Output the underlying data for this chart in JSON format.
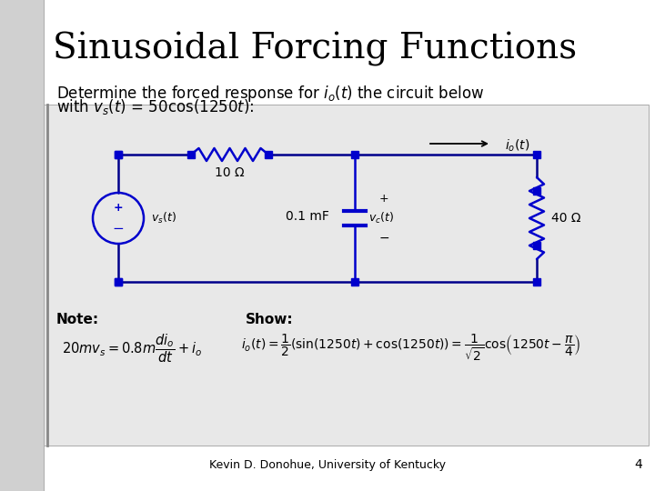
{
  "title": "Sinusoidal Forcing Functions",
  "bg_color": "#ffffff",
  "left_bar_color": "#d8d8d8",
  "content_bg": "#e8e8e8",
  "node_color": "#0000cc",
  "wire_color": "#00008B",
  "component_color": "#0000cc",
  "resistor1_label": "10 Ω",
  "capacitor_label": "0.1 mF",
  "vc_label": "$v_c(t)$",
  "resistor2_label": "40 Ω",
  "io_label": "$i_o(t)$",
  "vs_label": "$v_s(t)$",
  "note_label": "Note:",
  "show_label": "Show:",
  "footer": "Kevin D. Donohue, University of Kentucky",
  "page_num": "4",
  "title_fontsize": 28,
  "subtitle_fontsize": 12,
  "label_fontsize": 9,
  "eq_fontsize": 9.5
}
